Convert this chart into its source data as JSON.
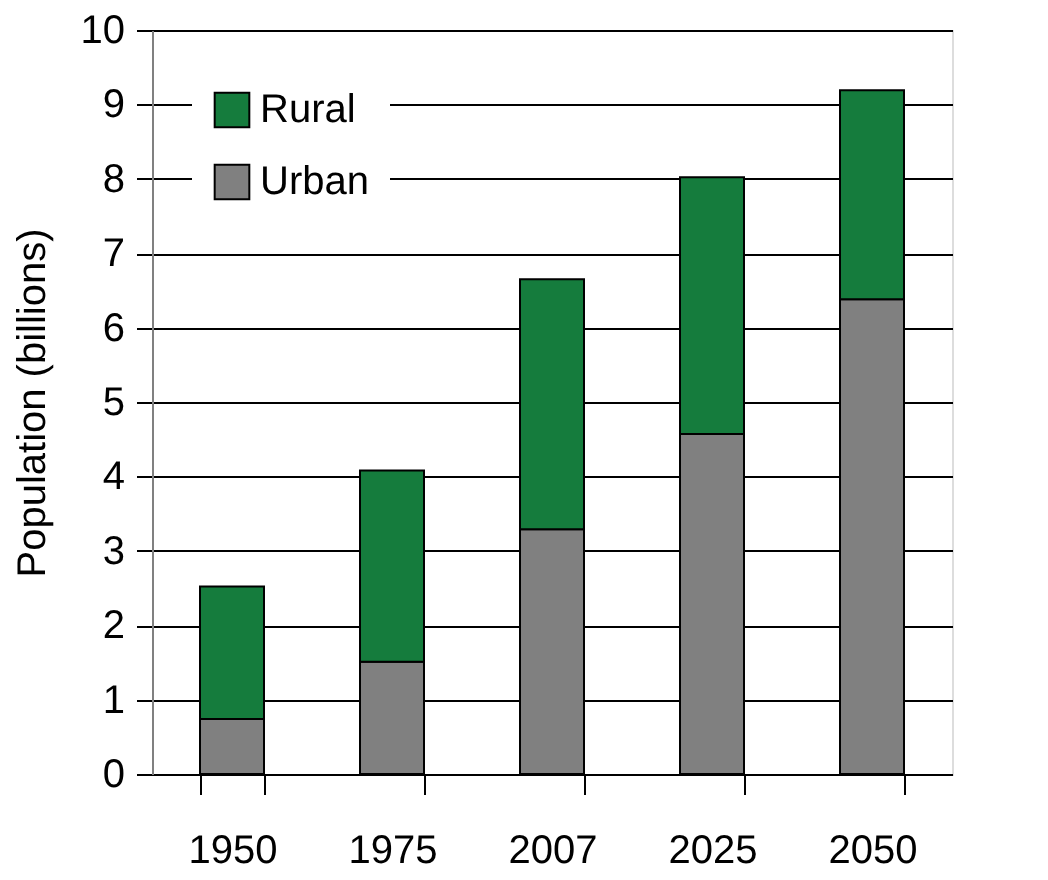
{
  "chart_data": {
    "type": "bar",
    "stacked": true,
    "ylabel": "Population (billions)",
    "categories": [
      "1950",
      "1975",
      "2007",
      "2025",
      "2050"
    ],
    "series": [
      {
        "name": "Urban",
        "color": "#808080",
        "values": [
          0.74,
          1.51,
          3.29,
          4.57,
          6.38
        ]
      },
      {
        "name": "Rural",
        "color": "#157c3d",
        "values": [
          1.78,
          2.57,
          3.36,
          3.45,
          2.81
        ]
      }
    ],
    "ylim": [
      0,
      10
    ],
    "yticks": [
      0,
      1,
      2,
      3,
      4,
      5,
      6,
      7,
      8,
      9,
      10
    ],
    "grid": "y",
    "legend": "top left"
  }
}
